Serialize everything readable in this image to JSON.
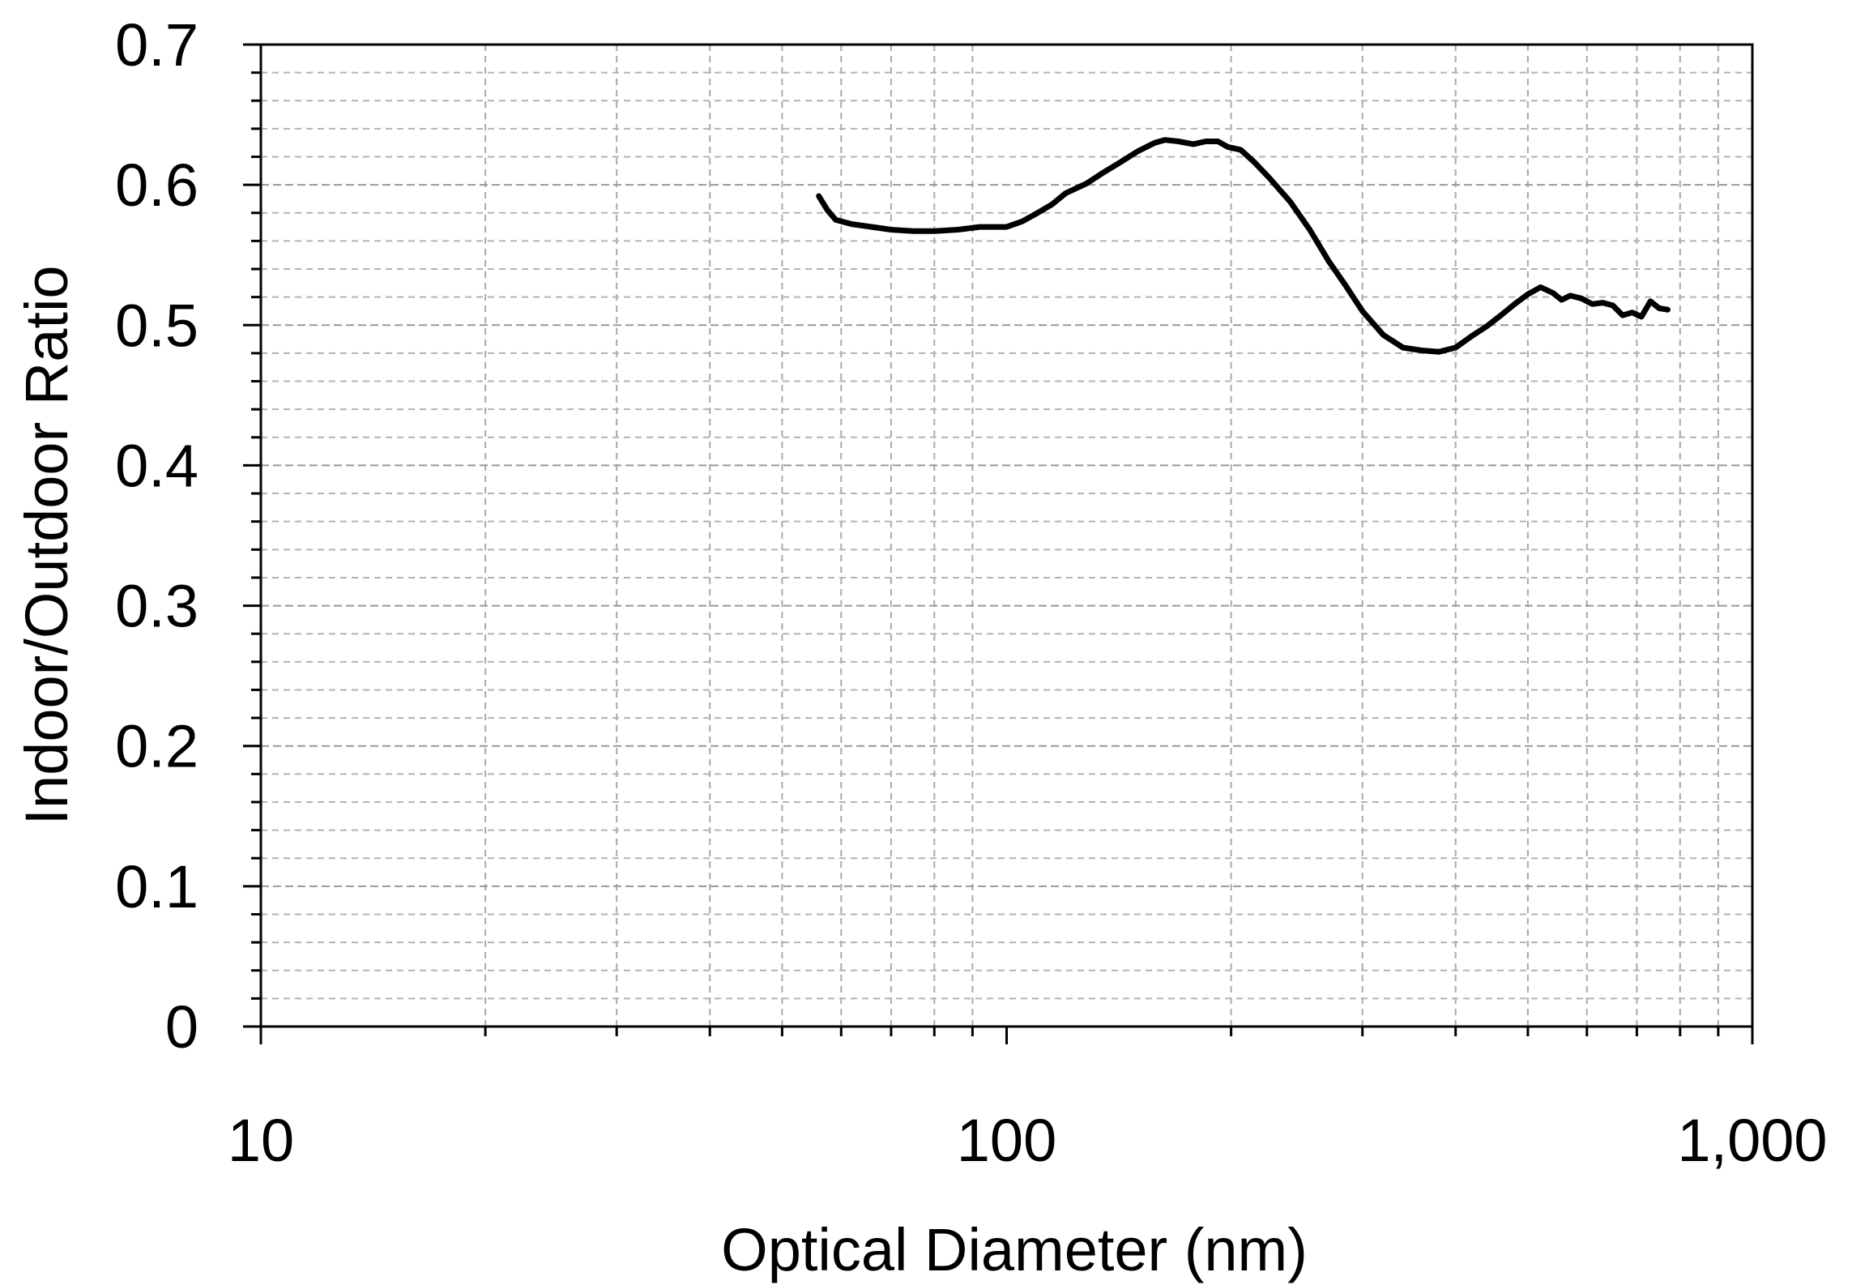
{
  "chart_data": {
    "type": "line",
    "title": "",
    "xlabel": "Optical Diameter (nm)",
    "ylabel": "Indoor/Outdoor Ratio",
    "x_scale": "log",
    "xlim": [
      10,
      1000
    ],
    "ylim": [
      0,
      0.7
    ],
    "x_ticks": [
      {
        "value": 10,
        "label": "10"
      },
      {
        "value": 100,
        "label": "100"
      },
      {
        "value": 1000,
        "label": "1,000"
      }
    ],
    "y_ticks": [
      {
        "value": 0,
        "label": "0"
      },
      {
        "value": 0.1,
        "label": "0.1"
      },
      {
        "value": 0.2,
        "label": "0.2"
      },
      {
        "value": 0.3,
        "label": "0.3"
      },
      {
        "value": 0.4,
        "label": "0.4"
      },
      {
        "value": 0.5,
        "label": "0.5"
      },
      {
        "value": 0.6,
        "label": "0.6"
      },
      {
        "value": 0.7,
        "label": "0.7"
      }
    ],
    "grid": true,
    "series": [
      {
        "color": "#000000",
        "x": [
          56,
          57.5,
          59,
          62,
          66,
          70,
          75,
          80,
          86,
          92,
          100,
          105,
          110,
          115,
          120,
          128,
          135,
          142,
          150,
          158,
          163,
          170,
          178,
          185,
          192,
          198,
          206,
          215,
          225,
          240,
          255,
          270,
          285,
          300,
          320,
          340,
          360,
          380,
          400,
          420,
          440,
          460,
          480,
          500,
          520,
          540,
          555,
          570,
          590,
          610,
          630,
          650,
          670,
          690,
          710,
          730,
          750,
          770
        ],
        "y": [
          0.592,
          0.582,
          0.575,
          0.572,
          0.57,
          0.568,
          0.567,
          0.567,
          0.568,
          0.57,
          0.57,
          0.574,
          0.58,
          0.586,
          0.594,
          0.601,
          0.609,
          0.616,
          0.624,
          0.63,
          0.632,
          0.631,
          0.629,
          0.631,
          0.631,
          0.627,
          0.625,
          0.616,
          0.605,
          0.588,
          0.568,
          0.546,
          0.528,
          0.51,
          0.493,
          0.484,
          0.482,
          0.481,
          0.484,
          0.492,
          0.499,
          0.507,
          0.515,
          0.522,
          0.527,
          0.523,
          0.518,
          0.521,
          0.519,
          0.515,
          0.516,
          0.514,
          0.507,
          0.509,
          0.506,
          0.517,
          0.512,
          0.511
        ]
      }
    ]
  }
}
